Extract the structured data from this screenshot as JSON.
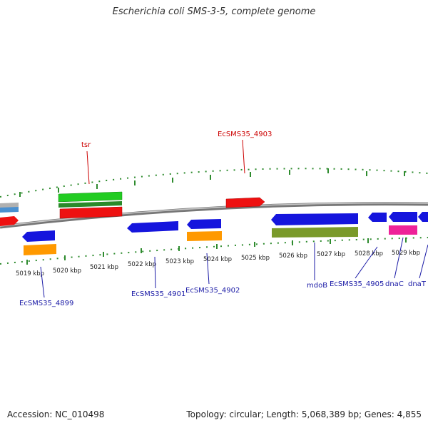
{
  "header": {
    "title": "Escherichia coli SMS-3-5, complete genome"
  },
  "footer": {
    "accession": "Accession: NC_010498",
    "stats": "Topology: circular; Length: 5,068,389 bp; Genes: 4,855"
  },
  "scale_labels": [
    "5019 kbp",
    "5020 kbp",
    "5021 kbp",
    "5022 kbp",
    "5023 kbp",
    "5024 kbp",
    "5025 kbp",
    "5026 kbp",
    "5027 kbp",
    "5028 kbp",
    "5029 kbp"
  ],
  "gene_labels_top": [
    "tsr",
    "EcSMS35_4903"
  ],
  "gene_labels_bottom": [
    "EcSMS35_4899",
    "EcSMS35_4901",
    "EcSMS35_4902",
    "mdoB",
    "EcSMS35_4905",
    "dnaC",
    "dnaT"
  ],
  "colors": {
    "backbone": "#8a8a8a",
    "ticks": "#2e8b2e",
    "top_label": "#cc0000",
    "bottom_label": "#1a1aa6",
    "cds_red": "#ee1111",
    "cds_blue": "#1515dd",
    "cds_green": "#22cc22",
    "cds_orange": "#ff9900",
    "cds_olive": "#7a9a2a",
    "cds_magenta": "#ee2299",
    "cds_lightblue": "#4a90d0"
  }
}
